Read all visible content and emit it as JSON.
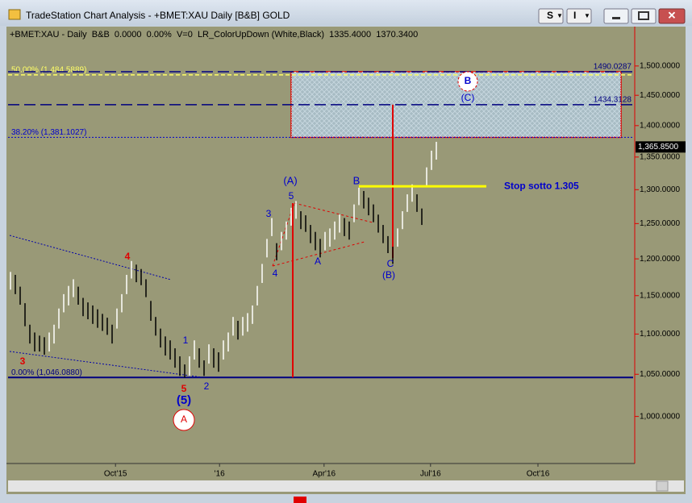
{
  "window": {
    "title": "TradeStation Chart Analysis - +BMET:XAU Daily [B&B] GOLD",
    "buttons": [
      "S",
      "I"
    ]
  },
  "chart_data": {
    "type": "ohlc",
    "header": "+BMET:XAU - Daily  B&B  0.0000  0.00%  V=0  LR_ColorUpDown (White,Black)  1335.4000  1370.3400",
    "log_scale": true,
    "ylim": [
      947,
      1567
    ],
    "yticks": [
      {
        "value": 1000,
        "label": "1,000.0000"
      },
      {
        "value": 1050,
        "label": "1,050.0000"
      },
      {
        "value": 1100,
        "label": "1,100.0000"
      },
      {
        "value": 1150,
        "label": "1,150.0000"
      },
      {
        "value": 1200,
        "label": "1,200.0000"
      },
      {
        "value": 1250,
        "label": "1,250.0000"
      },
      {
        "value": 1300,
        "label": "1,300.0000"
      },
      {
        "value": 1350,
        "label": "1,350.0000"
      },
      {
        "value": 1400,
        "label": "1,400.0000"
      },
      {
        "value": 1450,
        "label": "1,450.0000"
      },
      {
        "value": 1500,
        "label": "1,500.0000"
      }
    ],
    "xlim": [
      0,
      129.5
    ],
    "xticks": [
      {
        "value": 22.2,
        "label": "Oct'15"
      },
      {
        "value": 43.7,
        "label": "'16"
      },
      {
        "value": 65.3,
        "label": "Apr'16"
      },
      {
        "value": 87.3,
        "label": "Jul'16"
      },
      {
        "value": 109.5,
        "label": "Oct'16"
      }
    ],
    "high": [
      1182,
      1178,
      1162,
      1140,
      1112,
      1102,
      1098,
      1096,
      1102,
      1112,
      1133,
      1152,
      1163,
      1172,
      1162,
      1147,
      1141,
      1137,
      1132,
      1126,
      1121,
      1112,
      1133,
      1152,
      1178,
      1197,
      1192,
      1186,
      1172,
      1143,
      1122,
      1107,
      1097,
      1092,
      1082,
      1072,
      1062,
      1072,
      1092,
      1082,
      1067,
      1087,
      1082,
      1077,
      1092,
      1102,
      1122,
      1117,
      1122,
      1127,
      1137,
      1163,
      1193,
      1228,
      1258,
      1222,
      1238,
      1253,
      1273,
      1283,
      1268,
      1262,
      1248,
      1238,
      1228,
      1238,
      1243,
      1253,
      1263,
      1258,
      1253,
      1278,
      1303,
      1298,
      1288,
      1278,
      1263,
      1248,
      1232,
      1217,
      1243,
      1268,
      1293,
      1308,
      1293,
      1272,
      1334,
      1360,
      1374
    ],
    "low": [
      1158,
      1152,
      1138,
      1110,
      1088,
      1078,
      1078,
      1074,
      1078,
      1088,
      1107,
      1128,
      1137,
      1148,
      1138,
      1123,
      1119,
      1113,
      1108,
      1104,
      1099,
      1088,
      1107,
      1128,
      1152,
      1173,
      1168,
      1164,
      1148,
      1117,
      1098,
      1083,
      1073,
      1068,
      1058,
      1048,
      1046,
      1048,
      1068,
      1058,
      1048,
      1063,
      1058,
      1053,
      1068,
      1078,
      1098,
      1093,
      1098,
      1103,
      1113,
      1137,
      1167,
      1202,
      1232,
      1198,
      1212,
      1227,
      1247,
      1257,
      1242,
      1238,
      1222,
      1212,
      1202,
      1212,
      1217,
      1227,
      1237,
      1232,
      1227,
      1252,
      1277,
      1272,
      1262,
      1252,
      1237,
      1222,
      1208,
      1193,
      1217,
      1242,
      1267,
      1282,
      1267,
      1248,
      1306,
      1330,
      1346
    ],
    "last_price": {
      "value": 1365.85,
      "label": "1,365.8500"
    },
    "levels": [
      {
        "label": "50.00% (1,484.5889)",
        "value": 1484.5889,
        "color": "#ffff66"
      },
      {
        "label": "1490.0287",
        "value": 1490.0287,
        "color": "#000080"
      },
      {
        "label": "1434.3128",
        "value": 1434.3128,
        "color": "#000080"
      },
      {
        "label": "38.20% (1,381.1027)",
        "value": 1381.1027,
        "color": "#0000cc"
      },
      {
        "label": "0.00% (1,046.0880)",
        "value": 1046.088,
        "color": "#000080"
      }
    ],
    "stop": {
      "label": "Stop sotto 1.305",
      "value": 1305,
      "color": "#ffff00"
    },
    "annotations": [
      {
        "text": "3",
        "color": "#e00000"
      },
      {
        "text": "4",
        "color": "#e00000"
      },
      {
        "text": "5",
        "color": "#e00000"
      },
      {
        "text": "(5)",
        "color": "#0000cc"
      },
      {
        "text": "A",
        "color": "#e00000"
      },
      {
        "text": "1",
        "color": "#0000cc"
      },
      {
        "text": "2",
        "color": "#0000cc"
      },
      {
        "text": "3",
        "color": "#0000cc"
      },
      {
        "text": "4",
        "color": "#0000cc"
      },
      {
        "text": "5",
        "color": "#0000cc"
      },
      {
        "text": "(A)",
        "color": "#0000cc"
      },
      {
        "text": "A",
        "color": "#0000cc"
      },
      {
        "text": "B",
        "color": "#0000cc"
      },
      {
        "text": "C",
        "color": "#0000cc"
      },
      {
        "text": "(B)",
        "color": "#0000cc"
      },
      {
        "text": "B",
        "color": "#0000cc"
      },
      {
        "text": "(C)",
        "color": "#0000cc"
      }
    ]
  }
}
